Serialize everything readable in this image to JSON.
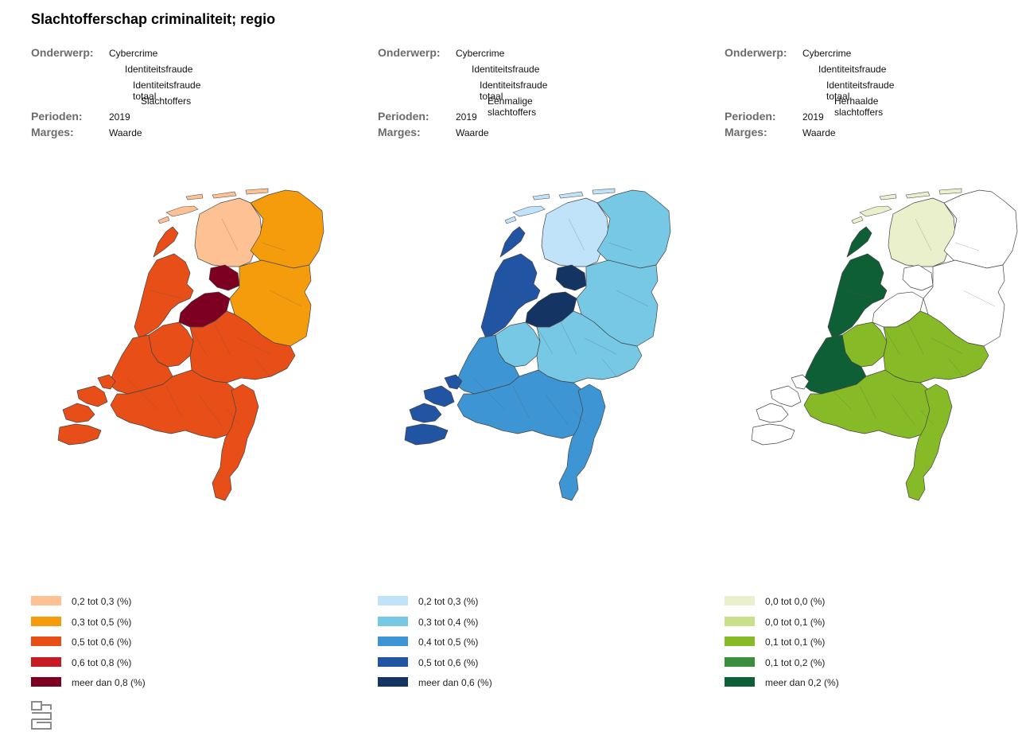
{
  "title": "Slachtofferschap criminaliteit; regio",
  "labels": {
    "onderwerp": "Onderwerp:",
    "perioden": "Perioden:",
    "marges": "Marges:"
  },
  "panels": [
    {
      "onderwerp": [
        "Cybercrime",
        "Identiteitsfraude",
        "Identiteitsfraude totaal",
        "Slachtoffers"
      ],
      "perioden": "2019",
      "marges": "Waarde",
      "palette": [
        "#fdc193",
        "#f59c0c",
        "#e84e17",
        "#c51b24",
        "#7d0022"
      ],
      "legend": [
        "0,2 tot 0,3 (%)",
        "0,3 tot 0,5 (%)",
        "0,5 tot 0,6 (%)",
        "0,6 tot 0,8 (%)",
        "meer dan 0,8 (%)"
      ],
      "regions": {
        "friesland": 0,
        "groningen_drenthe": 1,
        "noord_holland": 2,
        "flevoland": 4,
        "overijssel": 1,
        "gelderland": 2,
        "utrecht": 2,
        "zuid_holland": 2,
        "zeeland": 2,
        "brabant": 2,
        "limburg": 2,
        "islands": 0
      }
    },
    {
      "onderwerp": [
        "Cybercrime",
        "Identiteitsfraude",
        "Identiteitsfraude totaal",
        "Eenmalige slachtoffers"
      ],
      "perioden": "2019",
      "marges": "Waarde",
      "palette": [
        "#c1e3f9",
        "#77c8e4",
        "#3d95d3",
        "#2155a3",
        "#143563"
      ],
      "legend": [
        "0,2 tot 0,3 (%)",
        "0,3 tot 0,4 (%)",
        "0,4 tot 0,5 (%)",
        "0,5 tot 0,6 (%)",
        "meer dan 0,6 (%)"
      ],
      "regions": {
        "friesland": 0,
        "groningen_drenthe": 1,
        "noord_holland": 3,
        "flevoland": 4,
        "overijssel": 1,
        "gelderland": 1,
        "utrecht": 1,
        "zuid_holland": 2,
        "zeeland": 3,
        "brabant": 2,
        "limburg": 2,
        "islands": 0
      }
    },
    {
      "onderwerp": [
        "Cybercrime",
        "Identiteitsfraude",
        "Identiteitsfraude totaal",
        "Herhaalde slachtoffers"
      ],
      "perioden": "2019",
      "marges": "Waarde",
      "palette": [
        "#eaf0cb",
        "#c9df8a",
        "#86bb27",
        "#3b8f3c",
        "#0e5f35"
      ],
      "legend": [
        "0,0 tot 0,0 (%)",
        "0,0 tot 0,1 (%)",
        "0,1 tot 0,1 (%)",
        "0,1 tot 0,2 (%)",
        "meer dan 0,2 (%)"
      ],
      "regions": {
        "friesland": 0,
        "groningen_drenthe": -1,
        "noord_holland": 4,
        "flevoland": -1,
        "overijssel": -1,
        "gelderland": 2,
        "utrecht": 2,
        "zuid_holland": 4,
        "zeeland": -1,
        "brabant": 2,
        "limburg": 2,
        "islands": 0
      }
    }
  ],
  "icons": {
    "logo": "cbs-logo-icon"
  }
}
